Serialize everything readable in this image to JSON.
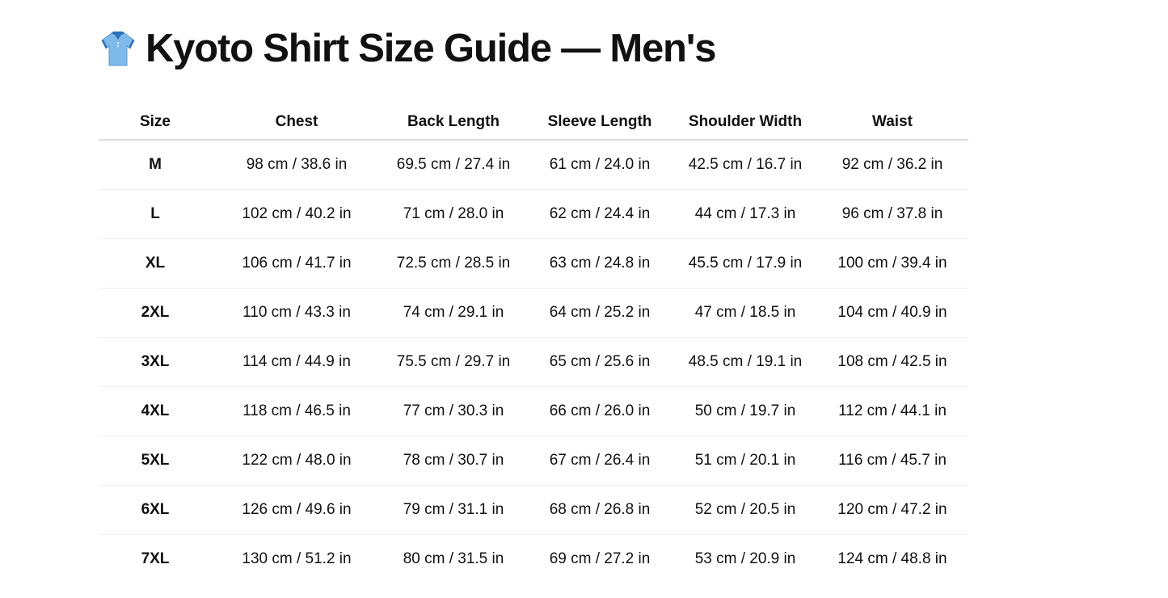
{
  "page": {
    "title": "Kyoto Shirt Size Guide — Men's",
    "title_icon": "polo-shirt-icon"
  },
  "table": {
    "headers": [
      "Size",
      "Chest",
      "Back Length",
      "Sleeve Length",
      "Shoulder Width",
      "Waist"
    ],
    "rows": [
      [
        "M",
        "98 cm / 38.6 in",
        "69.5 cm / 27.4 in",
        "61 cm / 24.0 in",
        "42.5 cm / 16.7 in",
        "92 cm / 36.2 in"
      ],
      [
        "L",
        "102 cm / 40.2 in",
        "71 cm / 28.0 in",
        "62 cm / 24.4 in",
        "44 cm / 17.3 in",
        "96 cm / 37.8 in"
      ],
      [
        "XL",
        "106 cm / 41.7 in",
        "72.5 cm / 28.5 in",
        "63 cm / 24.8 in",
        "45.5 cm / 17.9 in",
        "100 cm / 39.4 in"
      ],
      [
        "2XL",
        "110 cm / 43.3 in",
        "74 cm / 29.1 in",
        "64 cm / 25.2 in",
        "47 cm / 18.5 in",
        "104 cm / 40.9 in"
      ],
      [
        "3XL",
        "114 cm / 44.9 in",
        "75.5 cm / 29.7 in",
        "65 cm / 25.6 in",
        "48.5 cm / 19.1 in",
        "108 cm / 42.5 in"
      ],
      [
        "4XL",
        "118 cm / 46.5 in",
        "77 cm / 30.3 in",
        "66 cm / 26.0 in",
        "50 cm / 19.7 in",
        "112 cm / 44.1 in"
      ],
      [
        "5XL",
        "122 cm / 48.0 in",
        "78 cm / 30.7 in",
        "67 cm / 26.4 in",
        "51 cm / 20.1 in",
        "116 cm / 45.7 in"
      ],
      [
        "6XL",
        "126 cm / 49.6 in",
        "79 cm / 31.1 in",
        "68 cm / 26.8 in",
        "52 cm / 20.5 in",
        "120 cm / 47.2 in"
      ],
      [
        "7XL",
        "130 cm / 51.2 in",
        "80 cm / 31.5 in",
        "69 cm / 27.2 in",
        "53 cm / 20.9 in",
        "124 cm / 48.8 in"
      ]
    ]
  }
}
